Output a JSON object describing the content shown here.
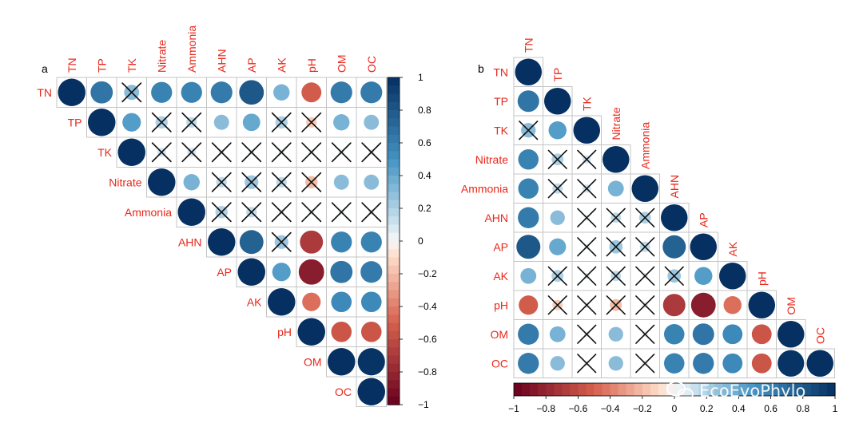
{
  "chart_data": [
    {
      "type": "heatmap",
      "subtype": "correlation-circle-upper",
      "panel": "a",
      "variables": [
        "TN",
        "TP",
        "TK",
        "Nitrate",
        "Ammonia",
        "AHN",
        "AP",
        "AK",
        "pH",
        "OM",
        "OC"
      ],
      "significance_mark": "X = not significant",
      "colorbar": {
        "orientation": "vertical",
        "range": [
          -1,
          1
        ],
        "ticks": [
          "1",
          "0.8",
          "0.6",
          "0.4",
          "0.2",
          "0",
          "−0.2",
          "−0.4",
          "−0.6",
          "−0.8",
          "−1"
        ]
      }
    },
    {
      "type": "heatmap",
      "subtype": "correlation-circle-lower",
      "panel": "b",
      "variables": [
        "TN",
        "TP",
        "TK",
        "Nitrate",
        "Ammonia",
        "AHN",
        "AP",
        "AK",
        "pH",
        "OM",
        "OC"
      ],
      "significance_mark": "X = not significant",
      "colorbar": {
        "orientation": "horizontal",
        "range": [
          -1,
          1
        ],
        "ticks": [
          "−1",
          "−0.8",
          "−0.6",
          "−0.4",
          "−0.2",
          "0",
          "0.2",
          "0.4",
          "0.6",
          "0.8",
          "1"
        ]
      }
    }
  ],
  "correlation_matrix": [
    [
      1.0,
      0.65,
      0.3,
      0.58,
      0.58,
      0.62,
      0.8,
      0.35,
      -0.52,
      0.62,
      0.62
    ],
    [
      0.65,
      1.0,
      0.45,
      0.2,
      0.15,
      0.3,
      0.4,
      0.2,
      -0.15,
      0.35,
      0.3
    ],
    [
      0.3,
      0.45,
      1.0,
      0.1,
      0.1,
      0.05,
      0.05,
      0.05,
      0.05,
      0.05,
      0.05
    ],
    [
      0.58,
      0.2,
      0.1,
      1.0,
      0.35,
      0.15,
      0.25,
      0.15,
      -0.2,
      0.3,
      0.3
    ],
    [
      0.58,
      0.15,
      0.1,
      0.35,
      1.0,
      0.2,
      0.15,
      0.05,
      0.05,
      0.05,
      0.05
    ],
    [
      0.62,
      0.3,
      0.05,
      0.15,
      0.2,
      1.0,
      0.75,
      0.25,
      -0.7,
      0.58,
      0.58
    ],
    [
      0.8,
      0.4,
      0.05,
      0.25,
      0.15,
      0.75,
      1.0,
      0.45,
      -0.85,
      0.65,
      0.62
    ],
    [
      0.35,
      0.2,
      0.05,
      0.15,
      0.05,
      0.25,
      0.45,
      1.0,
      -0.45,
      0.55,
      0.55
    ],
    [
      -0.52,
      -0.15,
      0.05,
      -0.2,
      0.05,
      -0.7,
      -0.85,
      -0.45,
      1.0,
      -0.55,
      -0.55
    ],
    [
      0.62,
      0.35,
      0.05,
      0.3,
      0.05,
      0.58,
      0.65,
      0.55,
      -0.55,
      1.0,
      0.98
    ],
    [
      0.62,
      0.3,
      0.05,
      0.3,
      0.05,
      0.58,
      0.62,
      0.55,
      -0.55,
      0.98,
      1.0
    ]
  ],
  "not_significant_pairs": [
    [
      0,
      2
    ],
    [
      1,
      3
    ],
    [
      1,
      4
    ],
    [
      1,
      7
    ],
    [
      1,
      8
    ],
    [
      2,
      3
    ],
    [
      2,
      4
    ],
    [
      2,
      5
    ],
    [
      2,
      6
    ],
    [
      2,
      7
    ],
    [
      2,
      8
    ],
    [
      2,
      9
    ],
    [
      2,
      10
    ],
    [
      3,
      5
    ],
    [
      3,
      6
    ],
    [
      3,
      7
    ],
    [
      3,
      8
    ],
    [
      4,
      5
    ],
    [
      4,
      6
    ],
    [
      4,
      7
    ],
    [
      4,
      8
    ],
    [
      4,
      9
    ],
    [
      4,
      10
    ],
    [
      5,
      7
    ]
  ],
  "color_scale": {
    "negative_strong": "#67001f",
    "negative_mid": "#d6604d",
    "negative_weak": "#fddbc7",
    "zero": "#f7f7f7",
    "positive_weak": "#d1e5f0",
    "positive_mid": "#4393c3",
    "positive_strong": "#053061"
  },
  "label_color": "#e8281c",
  "watermark": "EcoEvoPhylo"
}
